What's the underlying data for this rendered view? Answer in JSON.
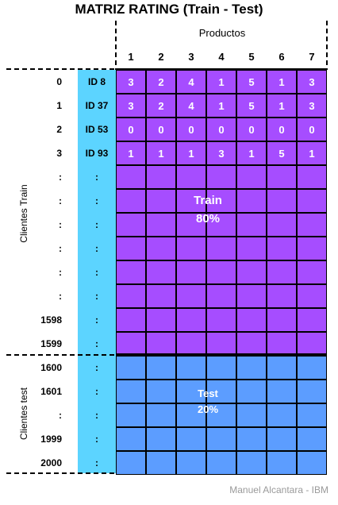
{
  "title": "MATRIZ RATING (Train - Test)",
  "columns_label": "Productos",
  "columns": [
    "1",
    "2",
    "3",
    "4",
    "5",
    "6",
    "7"
  ],
  "train": {
    "group_label": "Clientes Train",
    "block_label": "Train\n80%",
    "rows": [
      {
        "index": "0",
        "id": "ID 8",
        "values": [
          "3",
          "2",
          "4",
          "1",
          "5",
          "1",
          "3"
        ]
      },
      {
        "index": "1",
        "id": "ID 37",
        "values": [
          "3",
          "2",
          "4",
          "1",
          "5",
          "1",
          "3"
        ]
      },
      {
        "index": "2",
        "id": "ID 53",
        "values": [
          "0",
          "0",
          "0",
          "0",
          "0",
          "0",
          "0"
        ]
      },
      {
        "index": "3",
        "id": "ID 93",
        "values": [
          "1",
          "1",
          "1",
          "3",
          "1",
          "5",
          "1"
        ]
      },
      {
        "index": ":",
        "id": ":",
        "values": []
      },
      {
        "index": ":",
        "id": ":",
        "values": []
      },
      {
        "index": ":",
        "id": ":",
        "values": []
      },
      {
        "index": ":",
        "id": ":",
        "values": []
      },
      {
        "index": ":",
        "id": ":",
        "values": []
      },
      {
        "index": ":",
        "id": ":",
        "values": []
      },
      {
        "index": "1598",
        "id": ":",
        "values": []
      },
      {
        "index": "1599",
        "id": ":",
        "values": []
      }
    ]
  },
  "test": {
    "group_label": "Clientes test",
    "block_label": "Test\n20%",
    "rows": [
      {
        "index": "1600",
        "id": ":",
        "values": []
      },
      {
        "index": "1601",
        "id": ":",
        "values": []
      },
      {
        "index": ":",
        "id": ":",
        "values": []
      },
      {
        "index": "1999",
        "id": ":",
        "values": []
      },
      {
        "index": "2000",
        "id": ":",
        "values": []
      }
    ]
  },
  "credit": "Manuel Alcantara - IBM",
  "colors": {
    "train": "#a64dff",
    "test": "#5c9dff",
    "id_column": "#5cd4ff"
  }
}
